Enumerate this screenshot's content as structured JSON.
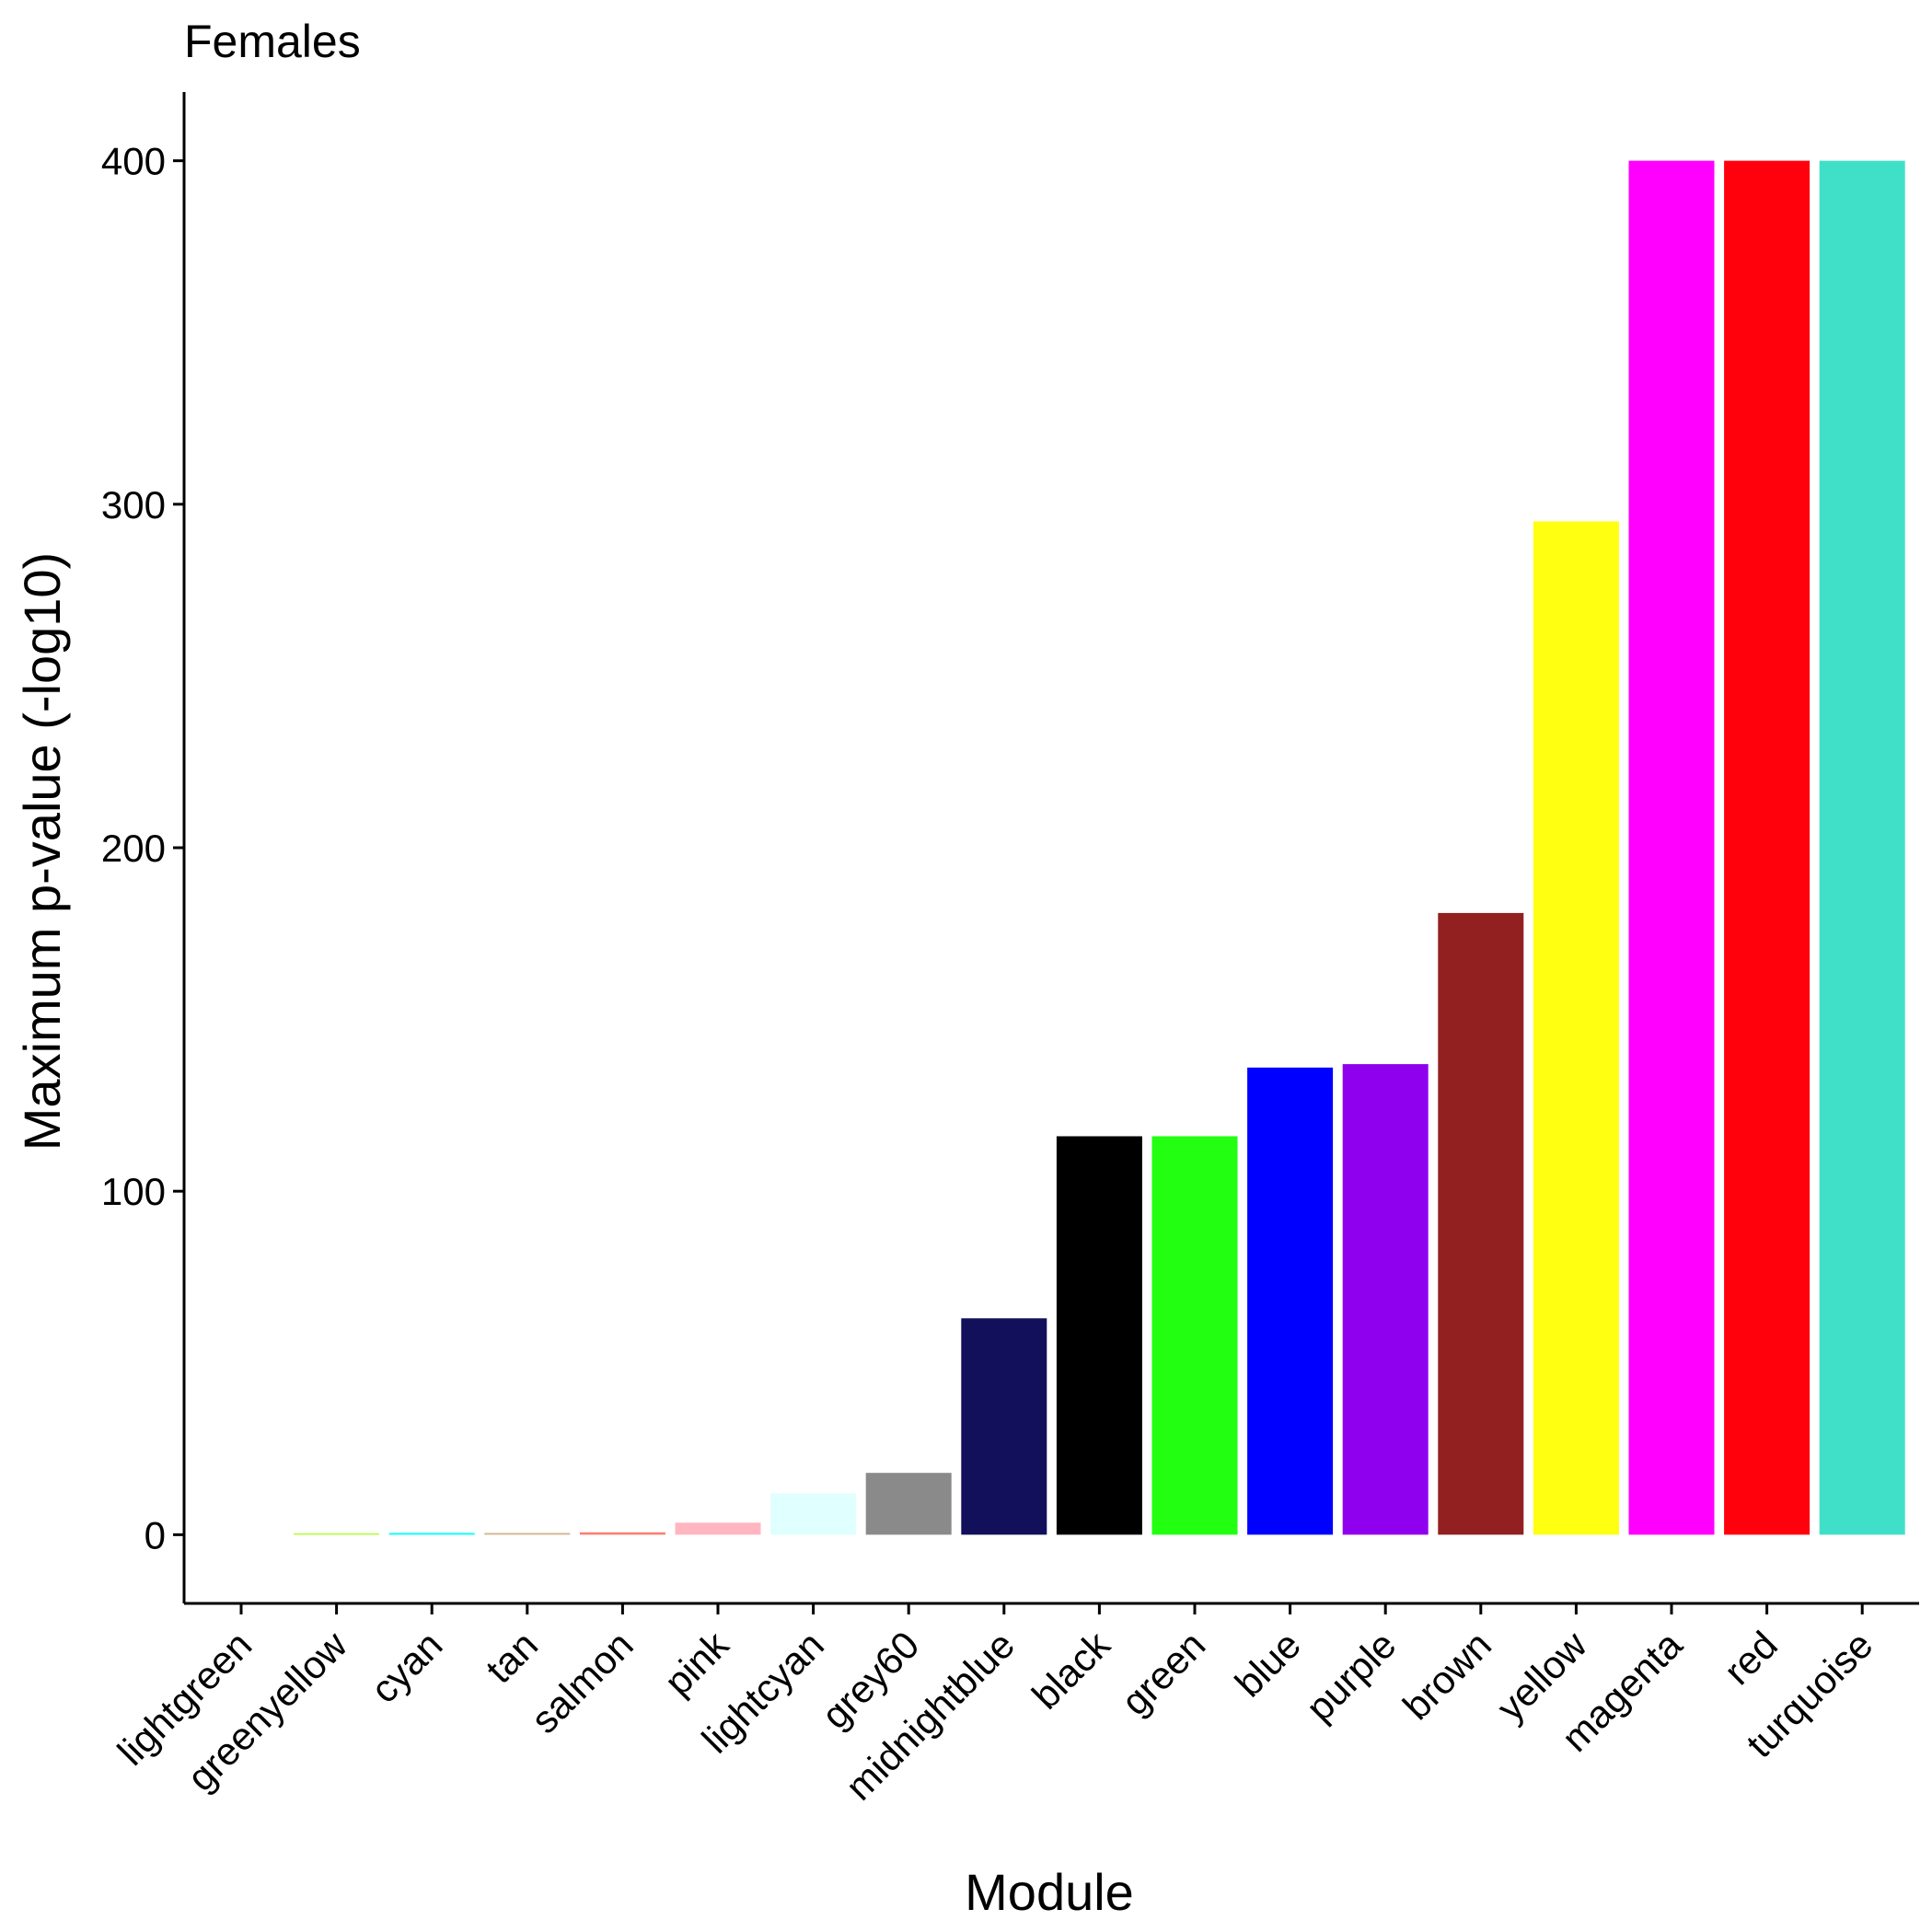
{
  "chart_data": {
    "type": "bar",
    "title": "Females",
    "xlabel": "Module",
    "ylabel": "Maximum p-value (-log10)",
    "ylim": [
      -20,
      420
    ],
    "yticks": [
      0,
      100,
      200,
      300,
      400
    ],
    "grid": false,
    "legend": "none",
    "categories": [
      "lightgreen",
      "greenyellow",
      "cyan",
      "tan",
      "salmon",
      "pink",
      "lightcyan",
      "grey60",
      "midnightblue",
      "black",
      "green",
      "blue",
      "purple",
      "brown",
      "yellow",
      "magenta",
      "red",
      "turquoise"
    ],
    "values": [
      0,
      0.3,
      0.5,
      0.5,
      0.7,
      3.5,
      12,
      18,
      63,
      116,
      116,
      136,
      137,
      181,
      295,
      400,
      400,
      400
    ],
    "colors": [
      "#90EE90",
      "#ADFF2F",
      "#00FFFF",
      "#D2B48C",
      "#FA8072",
      "#FFB6C1",
      "#E0FFFF",
      "#8A8A8A",
      "#12105A",
      "#000000",
      "#22FF11",
      "#0000FF",
      "#8F00EE",
      "#922020",
      "#FFFF11",
      "#FF00FF",
      "#FF000D",
      "#40E0C8"
    ]
  }
}
